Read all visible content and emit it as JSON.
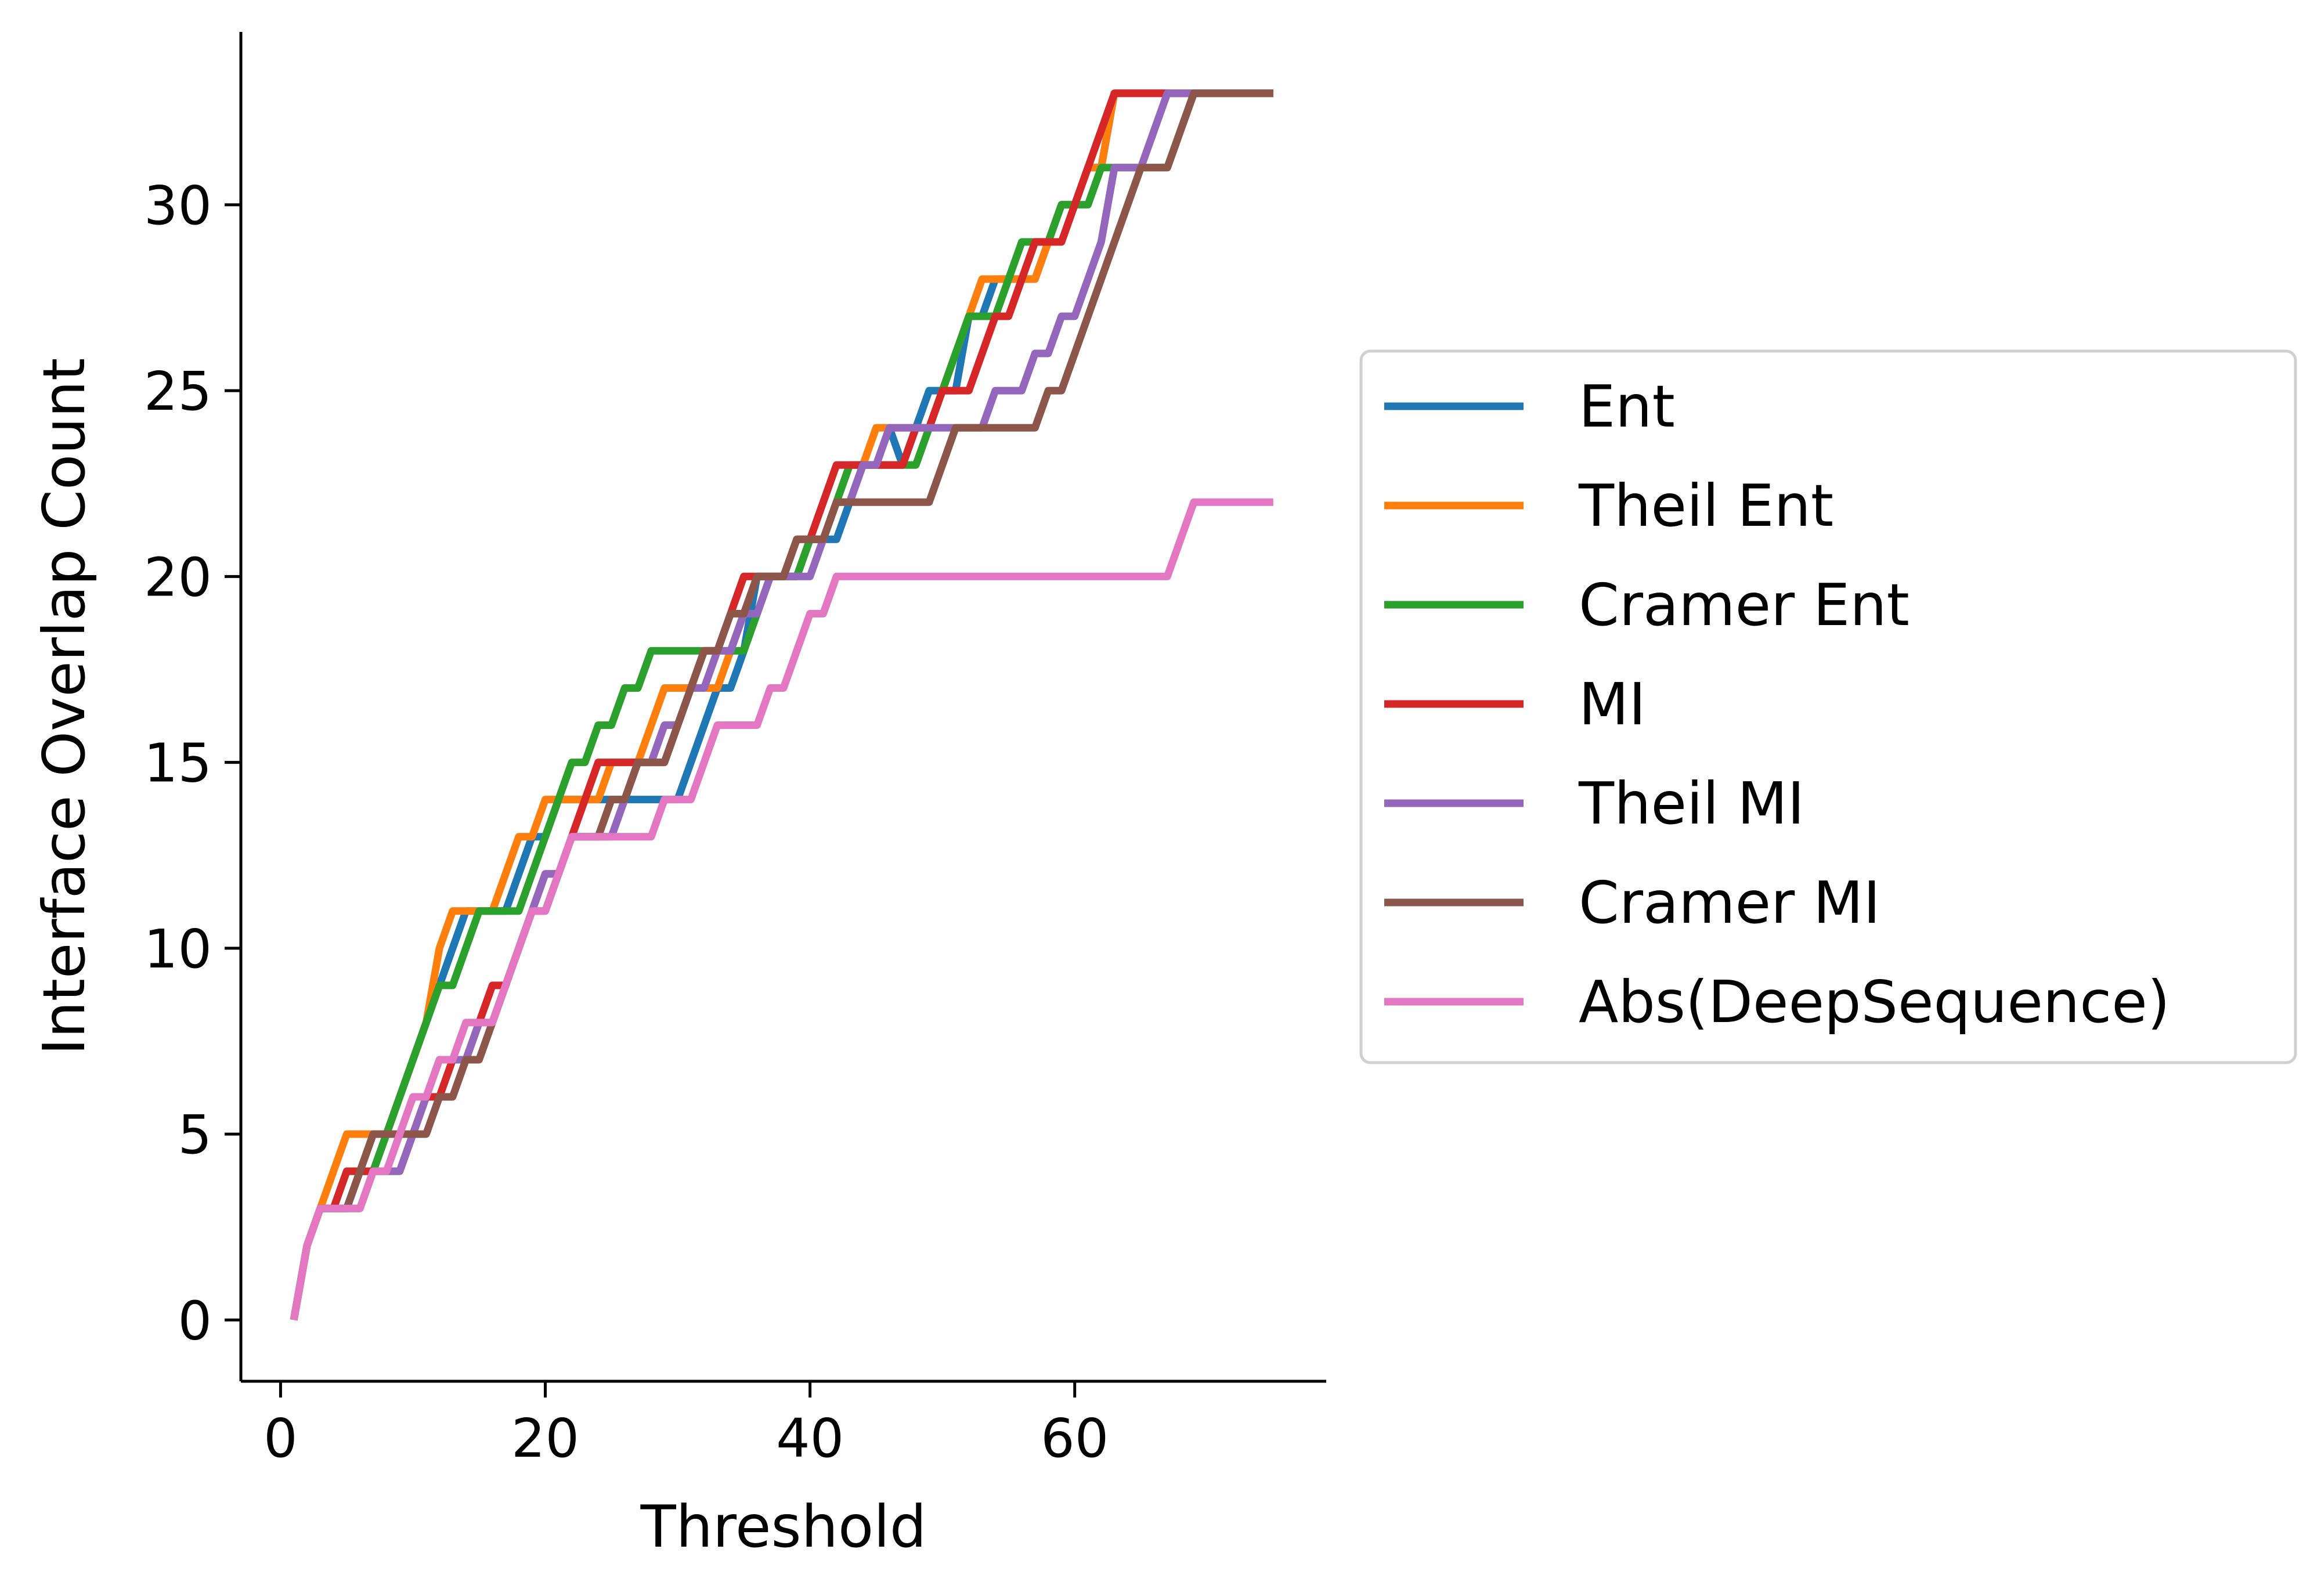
{
  "chart_data": {
    "type": "line",
    "title": "",
    "xlabel": "Threshold",
    "ylabel": "Interface Overlap Count",
    "xlim": [
      -3,
      79
    ],
    "ylim": [
      -1.65,
      34.65
    ],
    "xticks": [
      0,
      20,
      40,
      60
    ],
    "yticks": [
      0,
      5,
      10,
      15,
      20,
      25,
      30
    ],
    "grid": false,
    "legend_position": "center-right outside",
    "series": [
      {
        "name": "Ent",
        "color": "#1f77b4",
        "x": [
          1,
          2,
          3,
          5,
          6,
          7,
          8,
          12,
          13,
          14,
          15,
          16,
          17,
          18,
          19,
          20,
          21,
          22,
          23,
          24,
          25,
          26,
          27,
          28,
          30,
          31,
          32,
          33,
          34,
          35,
          36,
          37,
          38,
          39,
          40,
          41,
          42,
          43,
          44,
          45,
          46,
          47,
          48,
          49,
          50,
          51,
          52,
          53,
          54,
          55,
          56,
          57,
          58,
          59,
          60,
          61,
          62,
          63,
          64,
          65,
          66,
          67,
          68,
          69,
          70,
          75
        ],
        "y": [
          0,
          2,
          3,
          3,
          4,
          4,
          5,
          9,
          10,
          11,
          11,
          11,
          11,
          12,
          13,
          13,
          14,
          14,
          14,
          14,
          14,
          14,
          14,
          14,
          14,
          15,
          16,
          17,
          17,
          18,
          20,
          20,
          20,
          20,
          21,
          21,
          21,
          22,
          23,
          23,
          24,
          23,
          24,
          25,
          25,
          25,
          27,
          27,
          28,
          28,
          28,
          28,
          29,
          30,
          30,
          31,
          31,
          33,
          33,
          33,
          33,
          33,
          33,
          33,
          33,
          33
        ]
      },
      {
        "name": "Theil Ent",
        "color": "#ff7f0e",
        "x": [
          1,
          2,
          3,
          4,
          5,
          6,
          7,
          8,
          9,
          10,
          11,
          12,
          13,
          14,
          15,
          16,
          17,
          18,
          19,
          20,
          21,
          22,
          23,
          24,
          25,
          26,
          27,
          28,
          29,
          30,
          31,
          32,
          33,
          34,
          35,
          36,
          37,
          38,
          39,
          40,
          41,
          42,
          43,
          44,
          45,
          46,
          47,
          48,
          49,
          50,
          51,
          52,
          53,
          54,
          55,
          56,
          57,
          58,
          59,
          60,
          61,
          62,
          63,
          64,
          65,
          66,
          67,
          68,
          69,
          70,
          75
        ],
        "y": [
          0,
          2,
          3,
          4,
          5,
          5,
          5,
          5,
          6,
          7,
          8,
          10,
          11,
          11,
          11,
          11,
          12,
          13,
          13,
          14,
          14,
          14,
          14,
          14,
          15,
          15,
          15,
          16,
          17,
          17,
          17,
          17,
          17,
          18,
          19,
          20,
          20,
          20,
          20,
          21,
          21,
          22,
          23,
          23,
          24,
          24,
          24,
          24,
          24,
          25,
          26,
          27,
          28,
          28,
          28,
          28,
          28,
          29,
          30,
          30,
          31,
          31,
          33,
          33,
          33,
          33,
          33,
          33,
          33,
          33,
          33
        ]
      },
      {
        "name": "Cramer Ent",
        "color": "#2ca02c",
        "x": [
          1,
          2,
          3,
          4,
          5,
          6,
          7,
          8,
          9,
          10,
          11,
          12,
          13,
          14,
          15,
          16,
          17,
          18,
          19,
          20,
          21,
          22,
          23,
          24,
          25,
          26,
          27,
          28,
          29,
          30,
          31,
          32,
          33,
          34,
          35,
          36,
          37,
          38,
          39,
          40,
          41,
          42,
          43,
          44,
          45,
          46,
          47,
          48,
          49,
          50,
          51,
          52,
          53,
          54,
          55,
          56,
          57,
          58,
          59,
          60,
          61,
          62,
          63,
          64,
          65,
          66,
          67,
          68,
          69,
          70,
          75
        ],
        "y": [
          0,
          2,
          3,
          3,
          4,
          4,
          4,
          5,
          6,
          7,
          8,
          9,
          9,
          10,
          11,
          11,
          11,
          11,
          12,
          13,
          14,
          15,
          15,
          16,
          16,
          17,
          17,
          18,
          18,
          18,
          18,
          18,
          18,
          18,
          18,
          19,
          20,
          20,
          20,
          21,
          21,
          22,
          23,
          23,
          23,
          23,
          23,
          23,
          24,
          25,
          26,
          27,
          27,
          27,
          28,
          29,
          29,
          29,
          30,
          30,
          30,
          31,
          31,
          31,
          31,
          31,
          31,
          32,
          33,
          33,
          33
        ]
      },
      {
        "name": "MI",
        "color": "#d62728",
        "x": [
          1,
          2,
          3,
          4,
          5,
          6,
          7,
          8,
          9,
          10,
          11,
          12,
          13,
          14,
          15,
          16,
          17,
          18,
          19,
          20,
          21,
          22,
          23,
          24,
          25,
          26,
          27,
          28,
          29,
          30,
          31,
          32,
          33,
          34,
          35,
          36,
          37,
          38,
          39,
          40,
          41,
          42,
          43,
          44,
          45,
          46,
          47,
          48,
          49,
          50,
          51,
          52,
          53,
          54,
          55,
          56,
          57,
          58,
          59,
          60,
          61,
          62,
          63,
          64,
          65,
          66,
          67,
          68,
          69,
          70,
          75
        ],
        "y": [
          0,
          2,
          3,
          3,
          4,
          4,
          4,
          4,
          4,
          5,
          6,
          6,
          7,
          7,
          8,
          9,
          9,
          10,
          11,
          12,
          12,
          13,
          14,
          15,
          15,
          15,
          15,
          15,
          15,
          16,
          17,
          18,
          18,
          19,
          20,
          20,
          20,
          20,
          21,
          21,
          22,
          23,
          23,
          23,
          23,
          23,
          23,
          24,
          24,
          25,
          25,
          25,
          26,
          27,
          27,
          28,
          29,
          29,
          29,
          30,
          31,
          32,
          33,
          33,
          33,
          33,
          33,
          33,
          33,
          33,
          33
        ]
      },
      {
        "name": "Theil MI",
        "color": "#9467bd",
        "x": [
          1,
          2,
          3,
          4,
          5,
          6,
          7,
          8,
          9,
          10,
          11,
          12,
          13,
          14,
          15,
          16,
          17,
          18,
          19,
          20,
          21,
          22,
          23,
          24,
          25,
          26,
          27,
          28,
          29,
          30,
          31,
          32,
          33,
          34,
          35,
          36,
          37,
          38,
          39,
          40,
          41,
          42,
          43,
          44,
          45,
          46,
          47,
          48,
          49,
          50,
          51,
          52,
          53,
          54,
          55,
          56,
          57,
          58,
          59,
          60,
          61,
          62,
          63,
          64,
          65,
          66,
          67,
          68,
          69,
          70,
          75
        ],
        "y": [
          0,
          2,
          3,
          3,
          3,
          3,
          4,
          4,
          4,
          5,
          6,
          7,
          7,
          7,
          8,
          8,
          9,
          10,
          11,
          12,
          12,
          13,
          13,
          13,
          13,
          14,
          15,
          15,
          16,
          16,
          17,
          17,
          18,
          18,
          19,
          19,
          20,
          20,
          20,
          20,
          21,
          22,
          22,
          23,
          23,
          24,
          24,
          24,
          24,
          24,
          24,
          24,
          24,
          25,
          25,
          25,
          26,
          26,
          27,
          27,
          28,
          29,
          31,
          31,
          31,
          32,
          33,
          33,
          33,
          33,
          33
        ]
      },
      {
        "name": "Cramer MI",
        "color": "#8c564b",
        "x": [
          1,
          2,
          3,
          4,
          5,
          6,
          7,
          8,
          9,
          10,
          11,
          12,
          13,
          14,
          15,
          16,
          17,
          18,
          19,
          20,
          21,
          22,
          23,
          24,
          25,
          26,
          27,
          28,
          29,
          30,
          31,
          32,
          33,
          34,
          35,
          36,
          37,
          38,
          39,
          40,
          41,
          42,
          43,
          44,
          45,
          46,
          47,
          48,
          49,
          50,
          51,
          52,
          53,
          54,
          55,
          56,
          57,
          58,
          59,
          60,
          61,
          62,
          63,
          64,
          65,
          66,
          67,
          68,
          69,
          70,
          75
        ],
        "y": [
          0,
          2,
          3,
          3,
          3,
          4,
          5,
          5,
          5,
          5,
          5,
          6,
          6,
          7,
          7,
          8,
          9,
          10,
          11,
          11,
          12,
          13,
          13,
          13,
          14,
          14,
          15,
          15,
          15,
          16,
          17,
          18,
          18,
          19,
          19,
          20,
          20,
          20,
          21,
          21,
          21,
          22,
          22,
          22,
          22,
          22,
          22,
          22,
          22,
          23,
          24,
          24,
          24,
          24,
          24,
          24,
          24,
          25,
          25,
          26,
          27,
          28,
          29,
          30,
          31,
          31,
          31,
          32,
          33,
          33,
          33
        ]
      },
      {
        "name": "Abs(DeepSequence)",
        "color": "#e377c2",
        "x": [
          1,
          2,
          3,
          4,
          5,
          6,
          7,
          8,
          9,
          10,
          11,
          12,
          13,
          14,
          15,
          16,
          17,
          18,
          19,
          20,
          21,
          22,
          23,
          24,
          25,
          26,
          27,
          28,
          29,
          30,
          31,
          32,
          33,
          34,
          35,
          36,
          37,
          38,
          39,
          40,
          41,
          42,
          43,
          44,
          45,
          46,
          47,
          48,
          49,
          50,
          51,
          52,
          53,
          54,
          55,
          56,
          57,
          58,
          59,
          60,
          61,
          62,
          63,
          64,
          65,
          66,
          67,
          68,
          69,
          70,
          75
        ],
        "y": [
          0,
          2,
          3,
          3,
          3,
          3,
          4,
          4,
          5,
          6,
          6,
          7,
          7,
          8,
          8,
          8,
          9,
          10,
          11,
          11,
          12,
          13,
          13,
          13,
          13,
          13,
          13,
          13,
          14,
          14,
          14,
          15,
          16,
          16,
          16,
          16,
          17,
          17,
          18,
          19,
          19,
          20,
          20,
          20,
          20,
          20,
          20,
          20,
          20,
          20,
          20,
          20,
          20,
          20,
          20,
          20,
          20,
          20,
          20,
          20,
          20,
          20,
          20,
          20,
          20,
          20,
          20,
          21,
          22,
          22,
          22
        ]
      }
    ]
  }
}
